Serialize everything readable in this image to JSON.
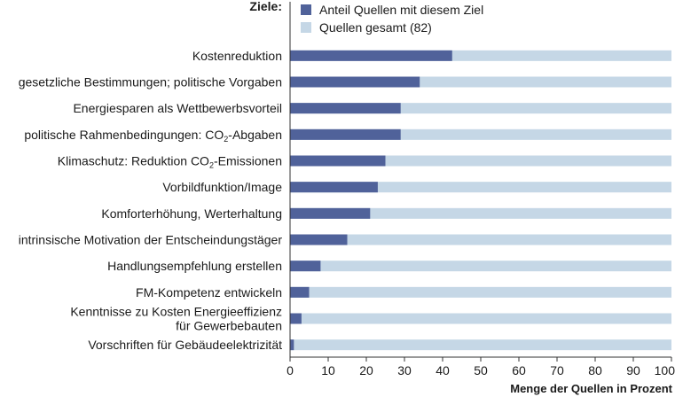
{
  "chart_data": {
    "type": "bar",
    "orientation": "horizontal",
    "stacked": false,
    "legend_title": "Ziele:",
    "legend_position": "top",
    "xlabel": "Menge der Quellen in Prozent",
    "xlim": [
      0,
      100
    ],
    "xticks": [
      0,
      10,
      20,
      30,
      40,
      50,
      60,
      70,
      80,
      90,
      100
    ],
    "grid": false,
    "categories": [
      [
        "Kostenreduktion"
      ],
      [
        "gesetzliche Bestimmungen;  politische Vorgaben"
      ],
      [
        "Energiesparen als Wettbewerbsvorteil"
      ],
      [
        "politische Rahmenbedingungen: CO₂-Abgaben"
      ],
      [
        "Klimaschutz: Reduktion CO₂-Emissionen"
      ],
      [
        "Vorbildfunktion/Image"
      ],
      [
        "Komforterhöhung, Werterhaltung"
      ],
      [
        "intrinsische Motivation der Entscheindungstäger"
      ],
      [
        "Handlungsempfehlung erstellen"
      ],
      [
        "FM-Kompetenz entwickeln"
      ],
      [
        "Kenntnisse zu Kosten Energieeffizienz",
        "für Gewerbebauten"
      ],
      [
        "Vorschriften für Gebäudeelektrizität"
      ]
    ],
    "series": [
      {
        "name": "Anteil Quellen mit diesem Ziel",
        "color": "#50629a",
        "values": [
          42.5,
          34,
          29,
          29,
          25,
          23,
          21,
          15,
          8,
          5,
          3,
          1
        ]
      },
      {
        "name": "Quellen gesamt (82)",
        "color": "#c5d7e6",
        "values": [
          100,
          100,
          100,
          100,
          100,
          100,
          100,
          100,
          100,
          100,
          100,
          100
        ]
      }
    ]
  }
}
